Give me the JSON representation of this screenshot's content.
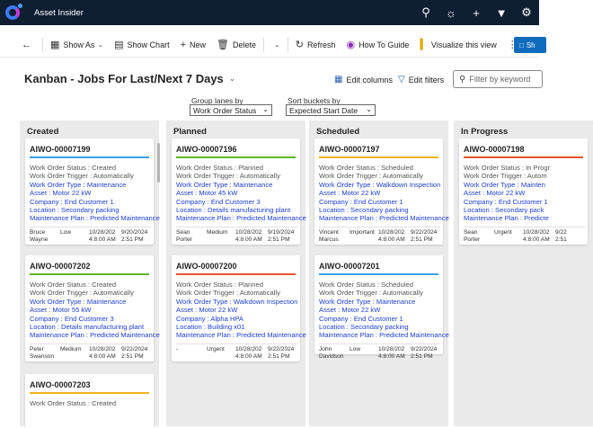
{
  "app": {
    "title": "Asset Insider"
  },
  "toolbar": {
    "show_as": "Show As",
    "show_chart": "Show Chart",
    "new": "New",
    "delete": "Delete",
    "refresh": "Refresh",
    "how_to_guide": "How To Guide",
    "visualize": "Visualize this view",
    "share": "Sh"
  },
  "view": {
    "title": "Kanban - Jobs For Last/Next 7 Days",
    "edit_columns": "Edit columns",
    "edit_filters": "Edit filters",
    "search_placeholder": "Filter by keyword",
    "group_lanes_label": "Group lanes by",
    "group_lanes_value": "Work Order Status",
    "sort_buckets_label": "Sort buckets by",
    "sort_buckets_value": "Expected Start Date"
  },
  "colors": {
    "created": "#3aa0e8",
    "planned": "#5cb82e",
    "scheduled": "#f0b31c",
    "in_progress": "#e8542e",
    "urgent": "#e8542e"
  },
  "lanes": [
    {
      "title": "Created",
      "cards": [
        {
          "id": "AIWO-00007199",
          "bar": "#3aa0e8",
          "status": "Work Order Status : Created",
          "trigger": "Work Order Trigger : Automatically",
          "type": "Work Order Type : Maintenance",
          "asset": "Asset : Motor 22 kW",
          "company": "Company : End Customer 1",
          "location": "Location : Secondary packing",
          "plan": "Maintenance Plan : Predicted Maintenance",
          "f1a": "Bruce",
          "f1b": "Wayne",
          "f2a": "Low",
          "f2b": "",
          "f3a": "10/28/202",
          "f3b": "4:8:00 AM",
          "f4a": "9/20/2024",
          "f4b": "2:51 PM"
        },
        {
          "id": "AIWO-00007202",
          "bar": "#5cb82e",
          "status": "Work Order Status : Created",
          "trigger": "Work Order Trigger : Automatically",
          "type": "Work Order Type : Maintenance",
          "asset": "Asset : Motor 55 kW",
          "company": "Company : End Customer 3",
          "location": "Location : Details manufacturing plant",
          "plan": "Maintenance Plan : Predicted Maintenance",
          "f1a": "Peter",
          "f1b": "Swanson",
          "f2a": "Medium",
          "f2b": "",
          "f3a": "10/28/202",
          "f3b": "4:8:00 AM",
          "f4a": "9/22/2024",
          "f4b": "2:51 PM"
        },
        {
          "id": "AIWO-00007203",
          "bar": "#f0b31c",
          "status": "Work Order Status : Created",
          "trigger": "",
          "type": "",
          "asset": "",
          "company": "",
          "location": "",
          "plan": "",
          "f1a": "",
          "f1b": "",
          "f2a": "",
          "f2b": "",
          "f3a": "",
          "f3b": "",
          "f4a": "",
          "f4b": ""
        }
      ]
    },
    {
      "title": "Planned",
      "cards": [
        {
          "id": "AIWO-00007196",
          "bar": "#5cb82e",
          "status": "Work Order Status : Planned",
          "trigger": "Work Order Trigger : Automatically",
          "type": "Work Order Type : Maintenance",
          "asset": "Asset : Motor 45 kW",
          "company": "Company : End Customer 3",
          "location": "Location : Details manufacturing plant",
          "plan": "Maintenance Plan : Predicted Maintenance",
          "f1a": "Sean",
          "f1b": "Porter",
          "f2a": "Medium",
          "f2b": "",
          "f3a": "10/28/202",
          "f3b": "4:8:00 AM",
          "f4a": "9/19/2024",
          "f4b": "2:51 PM"
        },
        {
          "id": "AIWO-00007200",
          "bar": "#e8542e",
          "status": "Work Order Status : Planned",
          "trigger": "Work Order Trigger : Automatically",
          "type": "Work Order Type : Walkdown Inspection",
          "asset": "Asset : Motor 22 kW",
          "company": "Company : Alpha HPA",
          "location": "Location : Building x01",
          "plan": "Maintenance Plan : Predicted Maintenance",
          "f1a": "-",
          "f1b": "",
          "f2a": "Urgent",
          "f2b": "",
          "f3a": "10/28/202",
          "f3b": "4:8:00 AM",
          "f4a": "9/22/2024",
          "f4b": "2:51 PM"
        }
      ]
    },
    {
      "title": "Scheduled",
      "cards": [
        {
          "id": "AIWO-00007197",
          "bar": "#f0b31c",
          "status": "Work Order Status : Scheduled",
          "trigger": "Work Order Trigger : Automatically",
          "type": "Work Order Type : Walkdown Inspection",
          "asset": "Asset : Motor 22 kW",
          "company": "Company : End Customer 1",
          "location": "Location : Secondary packing",
          "plan": "Maintenance Plan : Predicted Maintenance",
          "f1a": "Vincent",
          "f1b": "Marcus",
          "f2a": "Important",
          "f2b": "",
          "f3a": "10/28/202",
          "f3b": "4:8:00 AM",
          "f4a": "9/22/2024",
          "f4b": "2:51 PM"
        },
        {
          "id": "AIWO-00007201",
          "bar": "#3aa0e8",
          "status": "Work Order Status : Scheduled",
          "trigger": "Work Order Trigger : Automatically",
          "type": "Work Order Type : Maintenance",
          "asset": "Asset : Motor 22 kW",
          "company": "Company : End Customer 1",
          "location": "Location : Secondary packing",
          "plan": "Maintenance Plan : Predicted Maintenance",
          "f1a": "John",
          "f1b": "Davidson",
          "f2a": "Low",
          "f2b": "",
          "f3a": "10/28/202",
          "f3b": "4:8:00 AM",
          "f4a": "9/22/2024",
          "f4b": "2:51 PM"
        }
      ]
    },
    {
      "title": "In Progress",
      "cards": [
        {
          "id": "AIWO-00007198",
          "bar": "#e8542e",
          "status": "Work Order Status : In Progr",
          "trigger": "Work Order Trigger : Autom",
          "type": "Work Order Type : Mainten",
          "asset": "Asset : Motor 22 kW",
          "company": "Company : End Customer 1",
          "location": "Location : Secondary pack",
          "plan": "Maintenance Plan : Predicte",
          "f1a": "Sean",
          "f1b": "Porter",
          "f2a": "Urgent",
          "f2b": "",
          "f3a": "10/28/202",
          "f3b": "4:8:00 AM",
          "f4a": "9/22",
          "f4b": "2:51"
        }
      ]
    }
  ]
}
